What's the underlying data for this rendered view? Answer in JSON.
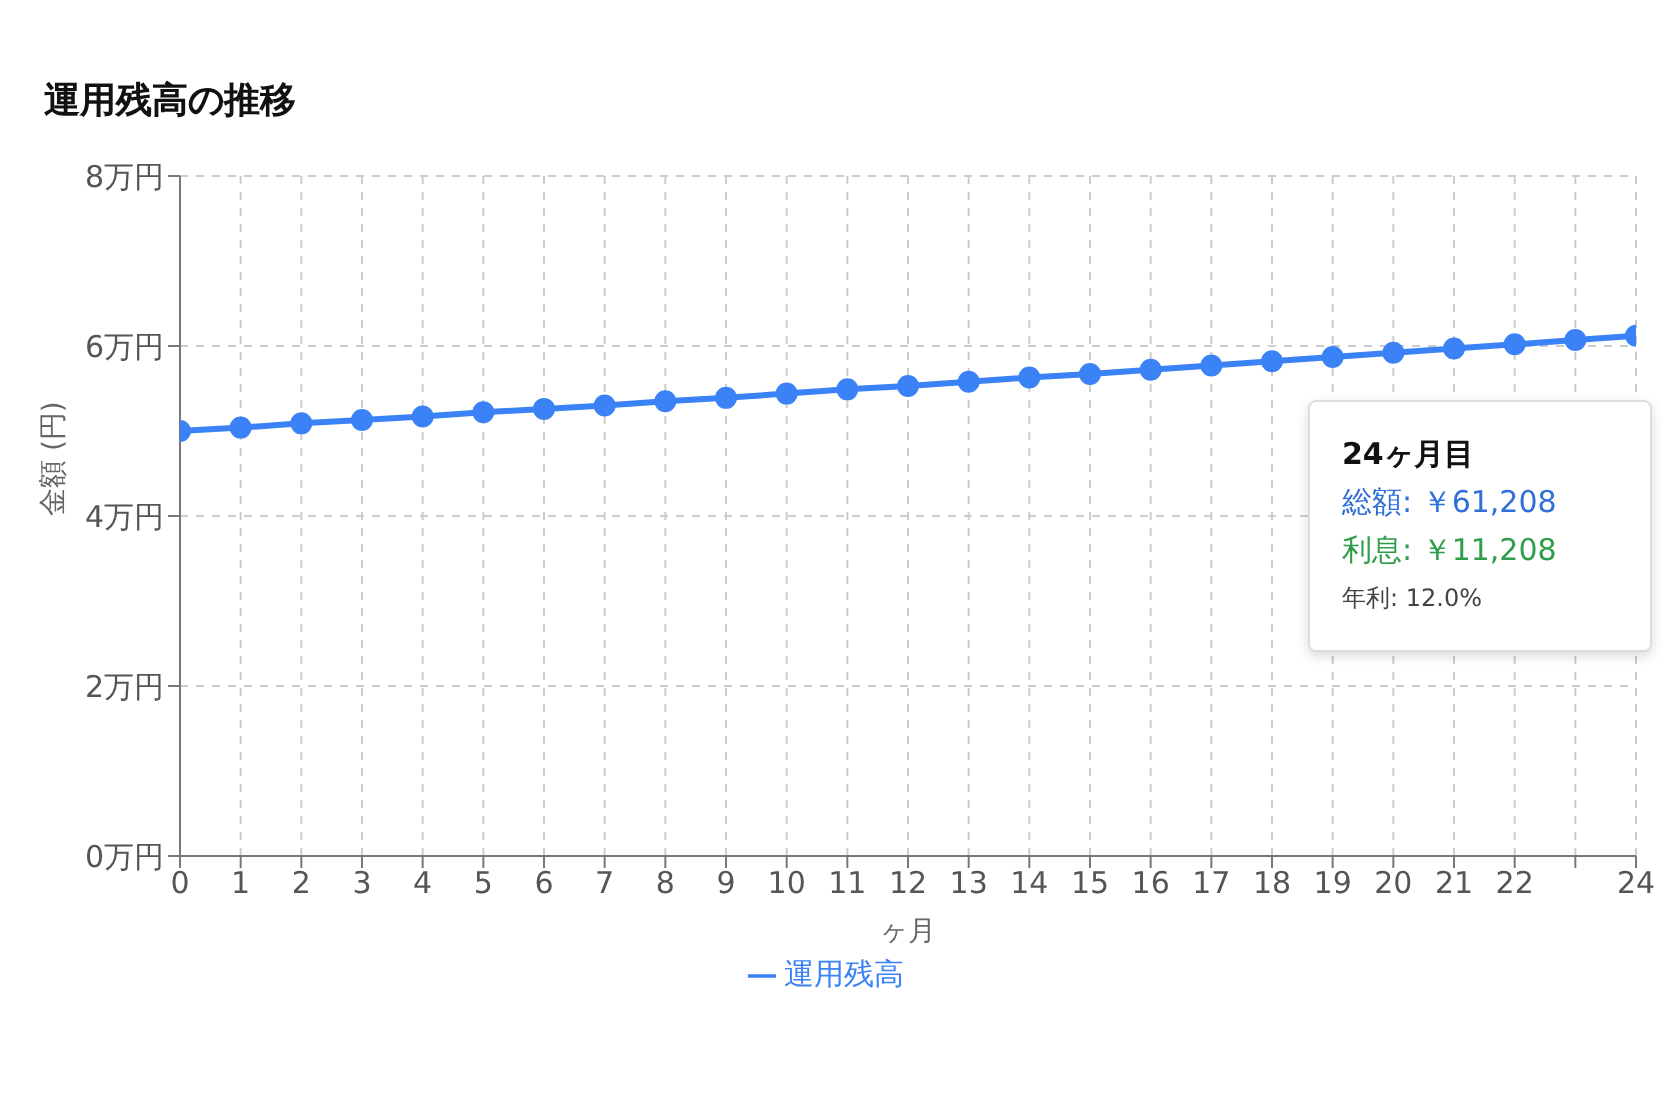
{
  "chart_data": {
    "type": "line",
    "title": "運用残高の推移",
    "xlabel": "ヶ月",
    "ylabel": "金額 (円)",
    "x": [
      0,
      1,
      2,
      3,
      4,
      5,
      6,
      7,
      8,
      9,
      10,
      11,
      12,
      13,
      14,
      15,
      16,
      17,
      18,
      19,
      20,
      21,
      22,
      23,
      24
    ],
    "series": [
      {
        "name": "運用残高",
        "color": "#3b82f6",
        "values": [
          5.0,
          5.04,
          5.09,
          5.13,
          5.17,
          5.22,
          5.26,
          5.3,
          5.35,
          5.39,
          5.44,
          5.49,
          5.53,
          5.58,
          5.63,
          5.67,
          5.72,
          5.77,
          5.82,
          5.87,
          5.92,
          5.97,
          6.02,
          6.07,
          6.12
        ]
      }
    ],
    "xlim": [
      0,
      24
    ],
    "xticks": [
      0,
      1,
      2,
      3,
      4,
      5,
      6,
      7,
      8,
      9,
      10,
      11,
      12,
      13,
      14,
      15,
      16,
      17,
      18,
      19,
      20,
      21,
      22,
      {
        "value": 23,
        "label": null
      },
      24
    ],
    "ylim": [
      0,
      8
    ],
    "yticks": [
      {
        "value": 0,
        "label": "0万円"
      },
      {
        "value": 2,
        "label": "2万円"
      },
      {
        "value": 4,
        "label": "4万円"
      },
      {
        "value": 6,
        "label": "6万円"
      },
      {
        "value": 8,
        "label": "8万円"
      }
    ],
    "grid": true,
    "legend": "bottom",
    "marker": "circle",
    "line_style": "solid",
    "annotations": [
      "24ヶ月目",
      "総額: ￥61,208",
      "利息: ￥11,208",
      "年利: 12.0%"
    ]
  }
}
